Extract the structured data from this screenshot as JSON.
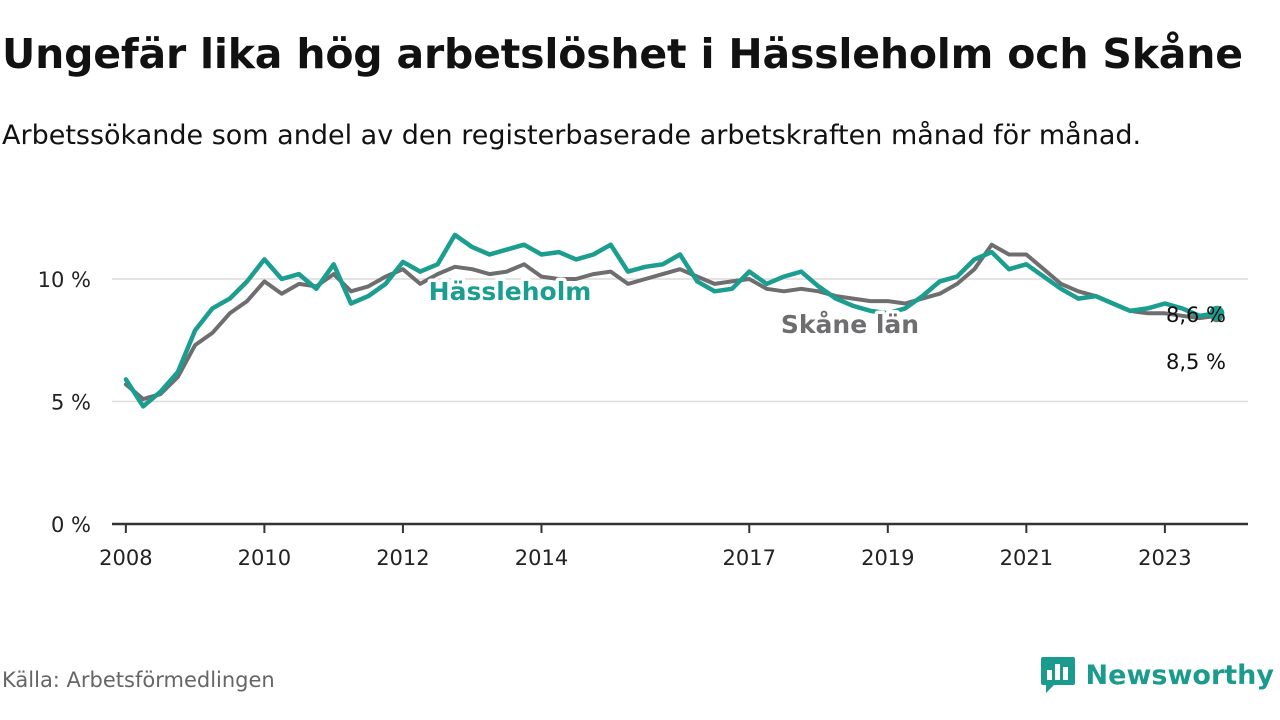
{
  "header": {
    "title": "Ungefär lika hög arbetslöshet i Hässleholm och Skåne",
    "subtitle": "Arbetssökande som andel av den registerbaserade arbetskraften månad för månad."
  },
  "footer": {
    "source": "Källa: Arbetsförmedlingen",
    "brand": "Newsworthy"
  },
  "colors": {
    "hassleholm": "#1b9e8f",
    "skane": "#6e6e70",
    "grid": "#dcdcdc",
    "axis": "#333333"
  },
  "chart_data": {
    "type": "line",
    "title": "Ungefär lika hög arbetslöshet i Hässleholm och Skåne",
    "xlabel": "",
    "ylabel": "",
    "ylim": [
      0,
      12
    ],
    "xlim": [
      2007.8,
      2024.2
    ],
    "y_ticks": [
      {
        "value": 0,
        "label": "0 %"
      },
      {
        "value": 5,
        "label": "5 %"
      },
      {
        "value": 10,
        "label": "10 %"
      }
    ],
    "x_ticks": [
      {
        "value": 2008,
        "label": "2008"
      },
      {
        "value": 2010,
        "label": "2010"
      },
      {
        "value": 2012,
        "label": "2012"
      },
      {
        "value": 2014,
        "label": "2014"
      },
      {
        "value": 2017,
        "label": "2017"
      },
      {
        "value": 2019,
        "label": "2019"
      },
      {
        "value": 2021,
        "label": "2021"
      },
      {
        "value": 2023,
        "label": "2023"
      }
    ],
    "series": [
      {
        "name": "Skåne län",
        "key": "skane",
        "label": "Skåne län",
        "end_label": "8,5 %",
        "x": [
          2008.0,
          2008.25,
          2008.5,
          2008.75,
          2009.0,
          2009.25,
          2009.5,
          2009.75,
          2010.0,
          2010.25,
          2010.5,
          2010.75,
          2011.0,
          2011.25,
          2011.5,
          2011.75,
          2012.0,
          2012.25,
          2012.5,
          2012.75,
          2013.0,
          2013.25,
          2013.5,
          2013.75,
          2014.0,
          2014.25,
          2014.5,
          2014.75,
          2015.0,
          2015.25,
          2015.5,
          2015.75,
          2016.0,
          2016.25,
          2016.5,
          2016.75,
          2017.0,
          2017.25,
          2017.5,
          2017.75,
          2018.0,
          2018.25,
          2018.5,
          2018.75,
          2019.0,
          2019.25,
          2019.5,
          2019.75,
          2020.0,
          2020.25,
          2020.5,
          2020.75,
          2021.0,
          2021.25,
          2021.5,
          2021.75,
          2022.0,
          2022.25,
          2022.5,
          2022.75,
          2023.0,
          2023.25,
          2023.5,
          2023.75
        ],
        "values": [
          5.7,
          5.1,
          5.3,
          6.0,
          7.3,
          7.8,
          8.6,
          9.1,
          9.9,
          9.4,
          9.8,
          9.7,
          10.2,
          9.5,
          9.7,
          10.1,
          10.4,
          9.8,
          10.2,
          10.5,
          10.4,
          10.2,
          10.3,
          10.6,
          10.1,
          10.0,
          10.0,
          10.2,
          10.3,
          9.8,
          10.0,
          10.2,
          10.4,
          10.1,
          9.8,
          9.9,
          10.0,
          9.6,
          9.5,
          9.6,
          9.5,
          9.3,
          9.2,
          9.1,
          9.1,
          9.0,
          9.2,
          9.4,
          9.8,
          10.4,
          11.4,
          11.0,
          11.0,
          10.4,
          9.8,
          9.5,
          9.3,
          9.0,
          8.7,
          8.6,
          8.6,
          8.5,
          8.4,
          8.5
        ]
      },
      {
        "name": "Hässleholm",
        "key": "hassleholm",
        "label": "Hässleholm",
        "end_label": "8,6 %",
        "x": [
          2008.0,
          2008.25,
          2008.5,
          2008.75,
          2009.0,
          2009.25,
          2009.5,
          2009.75,
          2010.0,
          2010.25,
          2010.5,
          2010.75,
          2011.0,
          2011.25,
          2011.5,
          2011.75,
          2012.0,
          2012.25,
          2012.5,
          2012.75,
          2013.0,
          2013.25,
          2013.5,
          2013.75,
          2014.0,
          2014.25,
          2014.5,
          2014.75,
          2015.0,
          2015.25,
          2015.5,
          2015.75,
          2016.0,
          2016.25,
          2016.5,
          2016.75,
          2017.0,
          2017.25,
          2017.5,
          2017.75,
          2018.0,
          2018.25,
          2018.5,
          2018.75,
          2019.0,
          2019.25,
          2019.5,
          2019.75,
          2020.0,
          2020.25,
          2020.5,
          2020.75,
          2021.0,
          2021.25,
          2021.5,
          2021.75,
          2022.0,
          2022.25,
          2022.5,
          2022.75,
          2023.0,
          2023.25,
          2023.5,
          2023.75
        ],
        "values": [
          5.9,
          4.8,
          5.4,
          6.2,
          7.9,
          8.8,
          9.2,
          9.9,
          10.8,
          10.0,
          10.2,
          9.6,
          10.6,
          9.0,
          9.3,
          9.8,
          10.7,
          10.3,
          10.6,
          11.8,
          11.3,
          11.0,
          11.2,
          11.4,
          11.0,
          11.1,
          10.8,
          11.0,
          11.4,
          10.3,
          10.5,
          10.6,
          11.0,
          9.9,
          9.5,
          9.6,
          10.3,
          9.8,
          10.1,
          10.3,
          9.7,
          9.2,
          8.9,
          8.7,
          8.6,
          8.8,
          9.3,
          9.9,
          10.1,
          10.8,
          11.1,
          10.4,
          10.6,
          10.1,
          9.6,
          9.2,
          9.3,
          9.0,
          8.7,
          8.8,
          9.0,
          8.8,
          8.5,
          8.6
        ]
      }
    ]
  }
}
